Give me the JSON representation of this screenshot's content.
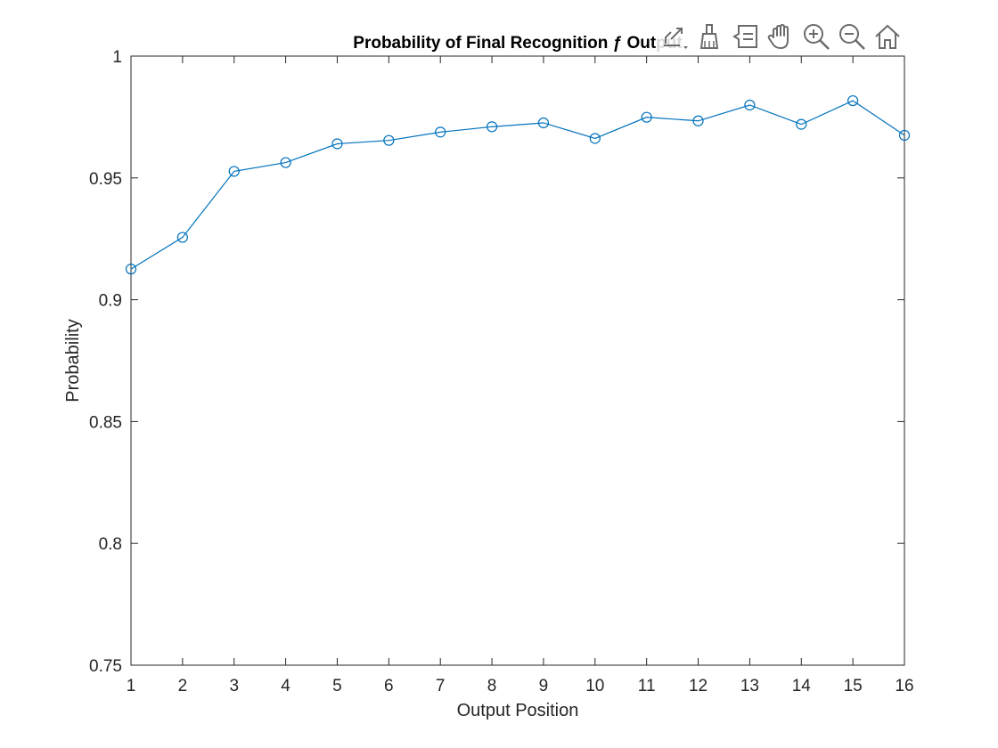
{
  "chart_data": {
    "type": "line",
    "title": "Probability of Final Recognition ƒ Output",
    "xlabel": "Output Position",
    "ylabel": "Probability",
    "xlim": [
      1,
      16
    ],
    "ylim": [
      0.75,
      1
    ],
    "xticks": [
      1,
      2,
      3,
      4,
      5,
      6,
      7,
      8,
      9,
      10,
      11,
      12,
      13,
      14,
      15,
      16
    ],
    "yticks": [
      0.75,
      0.8,
      0.85,
      0.9,
      0.95,
      1
    ],
    "ytick_labels": [
      "0.75",
      "0.8",
      "0.85",
      "0.9",
      "0.95",
      "1"
    ],
    "grid": false,
    "marker": "circle",
    "series": [
      {
        "x": [
          1,
          2,
          3,
          4,
          5,
          6,
          7,
          8,
          9,
          10,
          11,
          12,
          13,
          14,
          15,
          16
        ],
        "y": [
          0.9126,
          0.9256,
          0.9527,
          0.9563,
          0.964,
          0.9654,
          0.9688,
          0.971,
          0.9726,
          0.9662,
          0.9749,
          0.9734,
          0.9799,
          0.972,
          0.9817,
          0.9675
        ],
        "color": "#0072BD"
      }
    ]
  },
  "toolbar": {
    "tools": [
      {
        "name": "export-icon"
      },
      {
        "name": "brush-icon"
      },
      {
        "name": "datatip-icon"
      },
      {
        "name": "pan-hand-icon"
      },
      {
        "name": "zoom-in-icon"
      },
      {
        "name": "zoom-out-icon"
      },
      {
        "name": "home-icon"
      }
    ]
  }
}
